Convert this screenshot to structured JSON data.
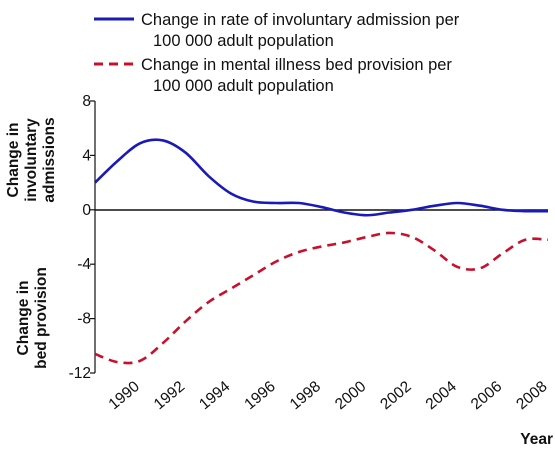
{
  "chart_data": {
    "type": "line",
    "title": "",
    "xlabel": "Year",
    "ylabel_top": [
      "Change in",
      "involuntary",
      "admissions"
    ],
    "ylabel_bottom": [
      "Change in",
      "bed provision"
    ],
    "ylim": [
      -12,
      8
    ],
    "yticks": [
      8,
      4,
      0,
      -4,
      -8,
      -12
    ],
    "xlim": [
      1988,
      2008
    ],
    "xticks": [
      1990,
      1992,
      1994,
      1996,
      1998,
      2000,
      2002,
      2004,
      2006,
      2008
    ],
    "legend_position": "top-left",
    "grid": false,
    "zero_line": true,
    "series": [
      {
        "name": "Change in rate of involuntary admission per 100 000 adult population",
        "legend_lines": [
          "Change in rate of involuntary admission per",
          "100 000 adult population"
        ],
        "style": "solid",
        "color": "#1a1ab8",
        "x": [
          1988,
          1989,
          1990,
          1991,
          1992,
          1993,
          1994,
          1995,
          1996,
          1997,
          1998,
          1999,
          2000,
          2001,
          2002,
          2003,
          2004,
          2005,
          2006,
          2007,
          2008
        ],
        "values": [
          2.0,
          3.6,
          4.9,
          5.1,
          4.2,
          2.5,
          1.2,
          0.6,
          0.5,
          0.5,
          0.2,
          -0.2,
          -0.4,
          -0.2,
          0.0,
          0.3,
          0.5,
          0.3,
          0.0,
          -0.1,
          -0.1
        ]
      },
      {
        "name": "Change in mental illness bed provision per 100 000 adult population",
        "legend_lines": [
          "Change in mental illness bed provision per",
          "100 000 adult population"
        ],
        "style": "dashed",
        "color": "#c8102e",
        "x": [
          1988,
          1989,
          1990,
          1991,
          1992,
          1993,
          1994,
          1995,
          1996,
          1997,
          1998,
          1999,
          2000,
          2001,
          2002,
          2003,
          2004,
          2005,
          2006,
          2007,
          2008
        ],
        "values": [
          -10.6,
          -11.2,
          -11.1,
          -9.8,
          -8.2,
          -6.8,
          -5.8,
          -4.8,
          -3.8,
          -3.1,
          -2.7,
          -2.4,
          -2.0,
          -1.7,
          -2.0,
          -3.0,
          -4.2,
          -4.3,
          -3.2,
          -2.2,
          -2.2
        ]
      }
    ]
  }
}
